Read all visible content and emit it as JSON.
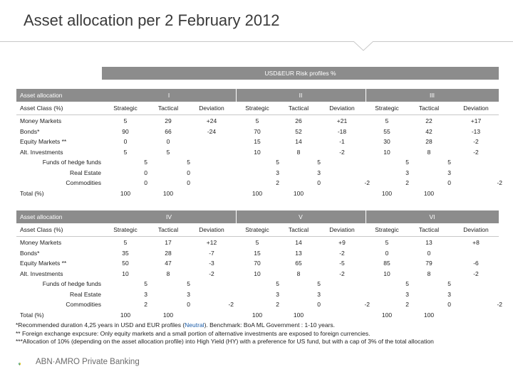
{
  "title": "Asset allocation per 2 February 2012",
  "super_header": "USD&EUR Risk profiles %",
  "section1": {
    "label": "Asset allocation",
    "profiles": [
      "I",
      "II",
      "III"
    ],
    "subheader": {
      "label": "Asset Class (%)",
      "cols": [
        "Strategic",
        "Tactical",
        "Deviation"
      ]
    },
    "rows": [
      {
        "label": "Money Markets",
        "v": [
          "5",
          "29",
          "+24",
          "5",
          "26",
          "+21",
          "5",
          "22",
          "+17"
        ]
      },
      {
        "label": "Bonds*",
        "v": [
          "90",
          "66",
          "-24",
          "70",
          "52",
          "-18",
          "55",
          "42",
          "-13"
        ]
      },
      {
        "label": "Equity Markets **",
        "v": [
          "0",
          "0",
          "",
          "15",
          "14",
          "-1",
          "30",
          "28",
          "-2"
        ]
      },
      {
        "label": "Alt. Investments",
        "v": [
          "5",
          "5",
          "",
          "10",
          "8",
          "-2",
          "10",
          "8",
          "-2"
        ]
      }
    ],
    "subrows": [
      {
        "label": "Funds of hedge funds",
        "v": [
          "5",
          "5",
          "",
          "5",
          "5",
          "",
          "5",
          "5",
          ""
        ]
      },
      {
        "label": "Real Estate",
        "v": [
          "0",
          "0",
          "",
          "3",
          "3",
          "",
          "3",
          "3",
          ""
        ]
      },
      {
        "label": "Commodities",
        "v": [
          "0",
          "0",
          "",
          "2",
          "0",
          "-2",
          "2",
          "0",
          "-2"
        ]
      }
    ],
    "total": {
      "label": "Total (%)",
      "v": [
        "100",
        "100",
        "",
        "100",
        "100",
        "",
        "100",
        "100",
        ""
      ]
    }
  },
  "section2": {
    "label": "Asset allocation",
    "profiles": [
      "IV",
      "V",
      "VI"
    ],
    "subheader": {
      "label": "Asset Class (%)",
      "cols": [
        "Strategic",
        "Tactical",
        "Deviation"
      ]
    },
    "rows": [
      {
        "label": "Money Markets",
        "v": [
          "5",
          "17",
          "+12",
          "5",
          "14",
          "+9",
          "5",
          "13",
          "+8"
        ]
      },
      {
        "label": "Bonds*",
        "v": [
          "35",
          "28",
          "-7",
          "15",
          "13",
          "-2",
          "0",
          "0",
          ""
        ]
      },
      {
        "label": "Equity Markets **",
        "v": [
          "50",
          "47",
          "-3",
          "70",
          "65",
          "-5",
          "85",
          "79",
          "-6"
        ]
      },
      {
        "label": "Alt. Investments",
        "v": [
          "10",
          "8",
          "-2",
          "10",
          "8",
          "-2",
          "10",
          "8",
          "-2"
        ]
      }
    ],
    "subrows": [
      {
        "label": "Funds of hedge funds",
        "v": [
          "5",
          "5",
          "",
          "5",
          "5",
          "",
          "5",
          "5",
          ""
        ]
      },
      {
        "label": "Real Estate",
        "v": [
          "3",
          "3",
          "",
          "3",
          "3",
          "",
          "3",
          "3",
          ""
        ]
      },
      {
        "label": "Commodities",
        "v": [
          "2",
          "0",
          "-2",
          "2",
          "0",
          "-2",
          "2",
          "0",
          "-2"
        ]
      }
    ],
    "total": {
      "label": "Total (%)",
      "v": [
        "100",
        "100",
        "",
        "100",
        "100",
        "",
        "100",
        "100",
        ""
      ]
    }
  },
  "notes": {
    "n1_a": "*Recommended duration 4,25 years in USD and EUR profiles (",
    "n1_neutral": "Neutral",
    "n1_b": "). Benchmark: BoA ML Government : 1-10 years.",
    "n2": "** Foreign exchange expcsure: Only equity markets and a small portion of alternative investments are exposed to foreign currencies.",
    "n3": "***Allocation of 10% (depending on the asset allocation profile) into High Yield (HY) with a preference for US fund, but with a cap of 3% of the total allocation"
  },
  "logo": {
    "text": "ABN·AMRO Private Banking",
    "icon": "abn-amro-shield-icon",
    "colors": {
      "green": "#00816a",
      "yellow": "#f5c400"
    }
  },
  "colors": {
    "header_bg": "#8c8c8c",
    "header_text": "#ffffff",
    "neutral_link": "#1a5ca8"
  }
}
